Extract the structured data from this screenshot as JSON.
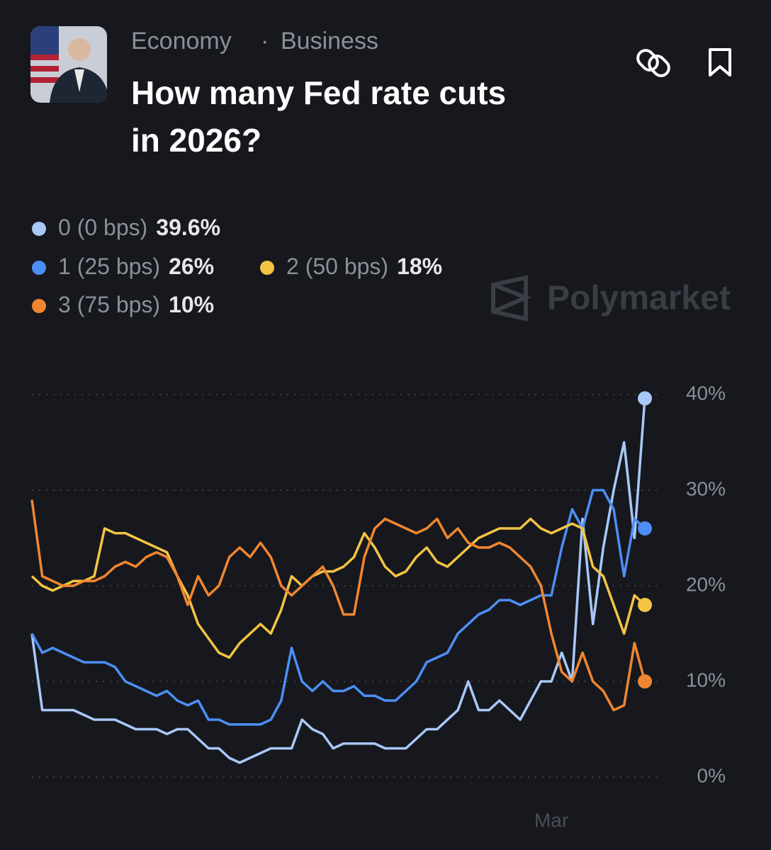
{
  "header": {
    "category": "Economy",
    "separator": "·",
    "subcategory": "Business",
    "title_lines": [
      "How many Fed rate cuts",
      "in 2026?"
    ],
    "watermark": "Polymarket"
  },
  "chart_data": {
    "type": "line",
    "categories": [
      null,
      null,
      null,
      null,
      null,
      null,
      null,
      null,
      null,
      null,
      null,
      null,
      null,
      null,
      null,
      null,
      null,
      null,
      null,
      null,
      null,
      null,
      null,
      null,
      null,
      null,
      null,
      null,
      null,
      null,
      null,
      null,
      null,
      null,
      null,
      null,
      null,
      null,
      null,
      null,
      null,
      null,
      null,
      null,
      null,
      null,
      null,
      null,
      null,
      null,
      "Mar",
      null,
      null,
      null,
      null,
      null,
      null,
      null,
      null,
      null
    ],
    "series": [
      {
        "name": "0 (0 bps)",
        "current_label": "39.6%",
        "color": "#a8c8f8",
        "values": [
          15,
          7,
          7,
          7,
          7,
          6.5,
          6,
          6,
          6,
          5.5,
          5,
          5,
          5,
          4.5,
          5,
          5,
          4,
          3,
          3,
          2,
          1.5,
          2,
          2.5,
          3,
          3,
          3,
          6,
          5,
          4.5,
          3,
          3.5,
          3.5,
          3.5,
          3.5,
          3,
          3,
          3,
          4,
          5,
          5,
          6,
          7,
          10,
          7,
          7,
          8,
          7,
          6,
          8,
          10,
          10,
          13,
          10,
          27,
          16,
          24,
          30,
          35,
          25,
          39.6
        ]
      },
      {
        "name": "1 (25 bps)",
        "current_label": "26%",
        "color": "#4d8ef5",
        "values": [
          15,
          13,
          13.5,
          13,
          12.5,
          12,
          12,
          12,
          11.5,
          10,
          9.5,
          9,
          8.5,
          9,
          8,
          7.5,
          8,
          6,
          6,
          5.5,
          5.5,
          5.5,
          5.5,
          6,
          8,
          13.5,
          10,
          9,
          10,
          9,
          9,
          9.5,
          8.5,
          8.5,
          8,
          8,
          9,
          10,
          12,
          12.5,
          13,
          15,
          16,
          17,
          17.5,
          18.5,
          18.5,
          18,
          18.5,
          19,
          19,
          24,
          28,
          26,
          30,
          30,
          28,
          21,
          27,
          26
        ]
      },
      {
        "name": "2 (50 bps)",
        "current_label": "18%",
        "color": "#f3c443",
        "values": [
          21,
          20,
          19.5,
          20,
          20.5,
          20.5,
          21,
          26,
          25.5,
          25.5,
          25,
          24.5,
          24,
          23.5,
          21,
          19,
          16,
          14.5,
          13,
          12.5,
          14,
          15,
          16,
          15,
          17.5,
          21,
          20,
          21,
          21.5,
          21.5,
          22,
          23,
          25.5,
          24,
          22,
          21,
          21.5,
          23,
          24,
          22.5,
          22,
          23,
          24,
          25,
          25.5,
          26,
          26,
          26,
          27,
          26,
          25.5,
          26,
          26.5,
          26,
          22,
          21,
          18,
          15,
          19,
          18
        ]
      },
      {
        "name": "3 (75 bps)",
        "current_label": "10%",
        "color": "#f0862f",
        "values": [
          29,
          21,
          20.5,
          20,
          20,
          20.5,
          20.5,
          21,
          22,
          22.5,
          22,
          23,
          23.5,
          23,
          21,
          18,
          21,
          19,
          20,
          23,
          24,
          23,
          24.5,
          23,
          20,
          19,
          20,
          21,
          22,
          20,
          17,
          17,
          23,
          26,
          27,
          26.5,
          26,
          25.5,
          26,
          27,
          25,
          26,
          24.5,
          24,
          24,
          24.5,
          24,
          23,
          22,
          20,
          15,
          11,
          10,
          13,
          10,
          9,
          7,
          7.5,
          14,
          10
        ]
      }
    ],
    "ylim": [
      0,
      40
    ],
    "yticks": [
      {
        "value": 0,
        "label": "0%"
      },
      {
        "value": 10,
        "label": "10%"
      },
      {
        "value": 20,
        "label": "20%"
      },
      {
        "value": 30,
        "label": "30%"
      },
      {
        "value": 40,
        "label": "40%"
      }
    ],
    "grid": true
  }
}
